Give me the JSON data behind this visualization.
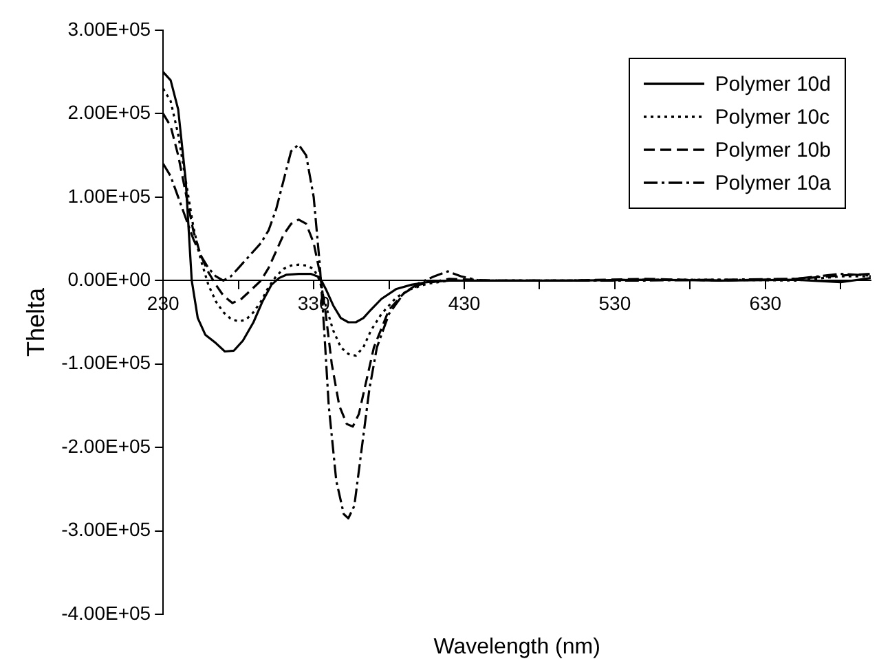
{
  "chart_data": {
    "type": "line",
    "xlabel": "Wavelength (nm)",
    "ylabel": "Thelta",
    "xlim": [
      230,
      700
    ],
    "xticks": [
      230,
      {
        "value": 280,
        "label": null
      },
      330,
      {
        "value": 380,
        "label": null
      },
      430,
      {
        "value": 480,
        "label": null
      },
      530,
      {
        "value": 580,
        "label": null
      },
      630,
      {
        "value": 680,
        "label": null
      }
    ],
    "ylim": [
      -400000,
      300000
    ],
    "yticks": [
      {
        "value": -400000,
        "label": "-4.00E+05"
      },
      {
        "value": -300000,
        "label": "-3.00E+05"
      },
      {
        "value": -200000,
        "label": "-2.00E+05"
      },
      {
        "value": -100000,
        "label": "-1.00E+05"
      },
      {
        "value": 0,
        "label": "0.00E+00"
      },
      {
        "value": 100000,
        "label": "1.00E+05"
      },
      {
        "value": 200000,
        "label": "2.00E+05"
      },
      {
        "value": 300000,
        "label": "3.00E+05"
      }
    ],
    "grid": false,
    "legend": "top right",
    "marker": "none",
    "series": [
      {
        "name": "Polymer 10d",
        "color": "#000000",
        "line_style": "solid",
        "x": [
          230,
          235,
          240,
          245,
          249,
          253,
          258,
          265,
          271,
          277,
          283,
          290,
          296,
          302,
          307,
          312,
          320,
          328,
          334,
          338,
          343,
          348,
          353,
          358,
          363,
          368,
          375,
          385,
          395,
          405,
          420,
          450,
          500,
          550,
          600,
          650,
          680,
          700
        ],
        "values": [
          250000,
          240000,
          205000,
          120000,
          0,
          -45000,
          -65000,
          -75000,
          -85000,
          -84000,
          -72000,
          -50000,
          -25000,
          -5000,
          3000,
          7000,
          8000,
          8000,
          4000,
          -10000,
          -30000,
          -45000,
          -50000,
          -50000,
          -45000,
          -35000,
          -22000,
          -10000,
          -5000,
          -2000,
          0,
          0,
          0,
          1000,
          0,
          1000,
          -2000,
          3000
        ]
      },
      {
        "name": "Polymer 10c",
        "color": "#000000",
        "line_style": "dotted",
        "x": [
          230,
          235,
          240,
          245,
          250,
          255,
          260,
          265,
          270,
          275,
          280,
          285,
          290,
          295,
          300,
          305,
          310,
          315,
          320,
          325,
          330,
          334,
          338,
          343,
          348,
          353,
          358,
          363,
          368,
          375,
          385,
          395,
          405,
          420,
          450,
          500,
          550,
          600,
          650,
          680,
          700
        ],
        "values": [
          230000,
          215000,
          175000,
          120000,
          65000,
          25000,
          -5000,
          -25000,
          -38000,
          -46000,
          -49000,
          -47000,
          -38000,
          -25000,
          -8000,
          5000,
          14000,
          18000,
          19000,
          18000,
          14000,
          0,
          -30000,
          -60000,
          -80000,
          -88000,
          -90000,
          -80000,
          -60000,
          -40000,
          -20000,
          -10000,
          -4000,
          0,
          0,
          0,
          1000,
          1000,
          0,
          5000,
          5000
        ]
      },
      {
        "name": "Polymer 10b",
        "color": "#000000",
        "line_style": "dashed",
        "x": [
          230,
          235,
          240,
          245,
          250,
          255,
          260,
          265,
          270,
          276,
          282,
          288,
          295,
          300,
          305,
          310,
          315,
          320,
          325,
          330,
          334,
          338,
          342,
          347,
          352,
          356,
          360,
          365,
          370,
          380,
          390,
          400,
          420,
          450,
          500,
          550,
          600,
          650,
          680,
          700
        ],
        "values": [
          200000,
          185000,
          150000,
          105000,
          60000,
          30000,
          10000,
          -5000,
          -18000,
          -27000,
          -22000,
          -12000,
          0,
          15000,
          35000,
          55000,
          68000,
          73000,
          68000,
          45000,
          10000,
          -40000,
          -100000,
          -150000,
          -172000,
          -175000,
          -160000,
          -120000,
          -80000,
          -35000,
          -15000,
          -5000,
          2000,
          0,
          0,
          2000,
          0,
          2000,
          6000,
          8000
        ]
      },
      {
        "name": "Polymer 10a",
        "color": "#000000",
        "line_style": "dashdot",
        "x": [
          230,
          235,
          240,
          245,
          250,
          255,
          260,
          265,
          270,
          275,
          280,
          285,
          290,
          295,
          300,
          305,
          310,
          315,
          320,
          325,
          330,
          334,
          337,
          340,
          345,
          350,
          353,
          357,
          362,
          367,
          372,
          380,
          390,
          400,
          410,
          419,
          428,
          440,
          500,
          550,
          600,
          650,
          680,
          700
        ],
        "values": [
          140000,
          125000,
          100000,
          75000,
          50000,
          30000,
          15000,
          5000,
          0,
          5000,
          15000,
          25000,
          35000,
          45000,
          60000,
          85000,
          120000,
          155000,
          163000,
          150000,
          100000,
          20000,
          -60000,
          -150000,
          -240000,
          -280000,
          -285000,
          -270000,
          -200000,
          -130000,
          -80000,
          -40000,
          -15000,
          -3000,
          5000,
          11000,
          5000,
          0,
          0,
          0,
          1000,
          2000,
          8000,
          6000
        ]
      }
    ]
  }
}
